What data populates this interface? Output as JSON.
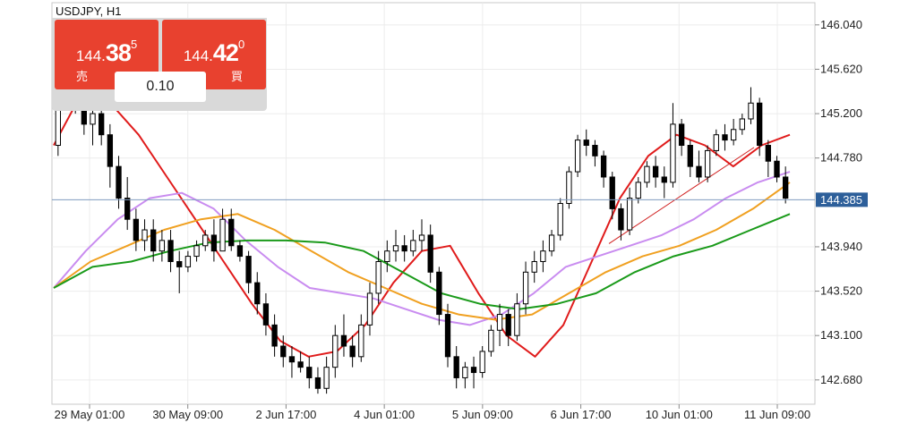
{
  "symbol_label": "USDJPY, H1",
  "trade_panel": {
    "sell": {
      "price_small": "144.",
      "price_big": "38",
      "price_sup": "5",
      "label": "売"
    },
    "buy": {
      "price_small": "144.",
      "price_big": "42",
      "price_sup": "0",
      "label": "買"
    },
    "volume": "0.10"
  },
  "colors": {
    "candle": "#000000",
    "ma_red": "#e01b1b",
    "ma_violet": "#c98cf0",
    "ma_orange": "#f0a020",
    "ma_green": "#1a9a1a",
    "trendline": "#d02020",
    "price_line": "#7f9cc0",
    "current_price_bg": "#2d5f9a"
  },
  "current_price": "144.385",
  "chart_data": {
    "type": "candlestick",
    "title": "USDJPY, H1",
    "y_axis": {
      "side": "right",
      "ticks": [
        "146.040",
        "145.620",
        "145.200",
        "144.780",
        "144.385",
        "143.940",
        "143.520",
        "143.100",
        "142.680"
      ],
      "ylim": [
        142.45,
        146.25
      ]
    },
    "x_axis": {
      "tick_labels": [
        "29 May 01:00",
        "30 May 09:00",
        "2 Jun 17:00",
        "4 Jun 01:00",
        "5 Jun 09:00",
        "6 Jun 17:00",
        "10 Jun 01:00",
        "11 Jun 09:00"
      ]
    },
    "grid": true,
    "candles": [
      [
        144.9,
        145.5,
        144.8,
        145.4
      ],
      [
        145.4,
        145.8,
        145.3,
        145.6
      ],
      [
        145.6,
        145.9,
        145.2,
        145.3
      ],
      [
        145.3,
        145.4,
        145.0,
        145.1
      ],
      [
        145.1,
        145.3,
        144.9,
        145.2
      ],
      [
        145.2,
        145.3,
        144.9,
        145.0
      ],
      [
        145.0,
        145.1,
        144.5,
        144.7
      ],
      [
        144.7,
        144.8,
        144.3,
        144.4
      ],
      [
        144.4,
        144.6,
        144.1,
        144.2
      ],
      [
        144.2,
        144.3,
        143.9,
        144.0
      ],
      [
        144.0,
        144.2,
        143.9,
        144.1
      ],
      [
        144.1,
        144.2,
        143.8,
        143.9
      ],
      [
        143.9,
        144.1,
        143.8,
        144.0
      ],
      [
        144.0,
        144.1,
        143.7,
        143.8
      ],
      [
        143.8,
        143.9,
        143.5,
        143.75
      ],
      [
        143.75,
        143.9,
        143.7,
        143.85
      ],
      [
        143.85,
        144.0,
        143.8,
        143.95
      ],
      [
        143.95,
        144.1,
        143.9,
        144.05
      ],
      [
        144.05,
        144.2,
        143.8,
        143.9
      ],
      [
        143.9,
        144.3,
        143.9,
        144.2
      ],
      [
        144.2,
        144.3,
        143.9,
        143.95
      ],
      [
        143.95,
        144.0,
        143.8,
        143.85
      ],
      [
        143.85,
        143.9,
        143.5,
        143.6
      ],
      [
        143.6,
        143.7,
        143.3,
        143.4
      ],
      [
        143.4,
        143.5,
        143.1,
        143.2
      ],
      [
        143.2,
        143.3,
        142.9,
        143.0
      ],
      [
        143.0,
        143.1,
        142.8,
        142.9
      ],
      [
        142.9,
        143.0,
        142.7,
        142.85
      ],
      [
        142.85,
        142.95,
        142.75,
        142.8
      ],
      [
        142.8,
        142.9,
        142.6,
        142.7
      ],
      [
        142.7,
        142.8,
        142.55,
        142.6
      ],
      [
        142.6,
        142.9,
        142.55,
        142.8
      ],
      [
        142.8,
        143.2,
        142.7,
        143.1
      ],
      [
        143.1,
        143.3,
        142.9,
        143.0
      ],
      [
        143.0,
        143.1,
        142.8,
        142.9
      ],
      [
        142.9,
        143.3,
        142.85,
        143.2
      ],
      [
        143.2,
        143.6,
        143.1,
        143.5
      ],
      [
        143.5,
        143.9,
        143.4,
        143.8
      ],
      [
        143.8,
        144.0,
        143.7,
        143.9
      ],
      [
        143.9,
        144.1,
        143.8,
        143.95
      ],
      [
        143.95,
        144.05,
        143.8,
        143.9
      ],
      [
        143.9,
        144.1,
        143.85,
        144.0
      ],
      [
        144.0,
        144.2,
        143.9,
        144.05
      ],
      [
        144.05,
        144.15,
        143.6,
        143.7
      ],
      [
        143.7,
        143.75,
        143.2,
        143.3
      ],
      [
        143.3,
        143.4,
        142.8,
        142.9
      ],
      [
        142.9,
        143.0,
        142.6,
        142.7
      ],
      [
        142.7,
        142.85,
        142.6,
        142.8
      ],
      [
        142.8,
        142.9,
        142.6,
        142.75
      ],
      [
        142.75,
        143.0,
        142.7,
        142.95
      ],
      [
        142.95,
        143.2,
        142.9,
        143.15
      ],
      [
        143.15,
        143.4,
        143.0,
        143.3
      ],
      [
        143.3,
        143.35,
        143.0,
        143.1
      ],
      [
        143.1,
        143.5,
        143.05,
        143.4
      ],
      [
        143.4,
        143.8,
        143.3,
        143.7
      ],
      [
        143.7,
        143.9,
        143.6,
        143.8
      ],
      [
        143.8,
        144.0,
        143.7,
        143.9
      ],
      [
        143.9,
        144.1,
        143.85,
        144.05
      ],
      [
        144.05,
        144.4,
        144.0,
        144.35
      ],
      [
        144.35,
        144.7,
        144.3,
        144.65
      ],
      [
        144.65,
        145.0,
        144.6,
        144.95
      ],
      [
        144.95,
        145.05,
        144.8,
        144.9
      ],
      [
        144.9,
        144.95,
        144.7,
        144.8
      ],
      [
        144.8,
        144.85,
        144.5,
        144.6
      ],
      [
        144.6,
        144.65,
        144.2,
        144.3
      ],
      [
        144.3,
        144.35,
        144.0,
        144.1
      ],
      [
        144.1,
        144.5,
        144.05,
        144.4
      ],
      [
        144.4,
        144.6,
        144.35,
        144.55
      ],
      [
        144.55,
        144.75,
        144.5,
        144.7
      ],
      [
        144.7,
        144.8,
        144.5,
        144.6
      ],
      [
        144.6,
        144.7,
        144.4,
        144.55
      ],
      [
        144.55,
        145.3,
        144.5,
        145.1
      ],
      [
        145.1,
        145.15,
        144.8,
        144.9
      ],
      [
        144.9,
        144.95,
        144.6,
        144.7
      ],
      [
        144.7,
        144.85,
        144.55,
        144.6
      ],
      [
        144.6,
        144.9,
        144.55,
        144.85
      ],
      [
        144.85,
        145.05,
        144.8,
        145.0
      ],
      [
        145.0,
        145.1,
        144.85,
        144.95
      ],
      [
        144.95,
        145.15,
        144.9,
        145.05
      ],
      [
        145.05,
        145.2,
        145.0,
        145.15
      ],
      [
        145.15,
        145.45,
        145.1,
        145.3
      ],
      [
        145.3,
        145.35,
        144.8,
        144.9
      ],
      [
        144.9,
        144.95,
        144.6,
        144.75
      ],
      [
        144.75,
        144.8,
        144.55,
        144.6
      ],
      [
        144.6,
        144.7,
        144.35,
        144.4
      ]
    ],
    "moving_averages": [
      {
        "color": "#e01b1b",
        "values": [
          144.9,
          145.4,
          145.3,
          145.0,
          144.6,
          144.2,
          143.8,
          143.4,
          143.05,
          142.9,
          142.95,
          143.2,
          143.6,
          143.9,
          143.95,
          143.5,
          143.1,
          142.9,
          143.2,
          143.8,
          144.4,
          144.8,
          145.0,
          144.9,
          144.7,
          144.9,
          145.0
        ]
      },
      {
        "color": "#c98cf0",
        "values": [
          143.55,
          143.9,
          144.2,
          144.4,
          144.45,
          144.3,
          144.0,
          143.75,
          143.55,
          143.5,
          143.45,
          143.35,
          143.25,
          143.2,
          143.3,
          143.5,
          143.75,
          143.85,
          143.95,
          144.05,
          144.2,
          144.4,
          144.55,
          144.65
        ]
      },
      {
        "color": "#f0a020",
        "values": [
          143.55,
          143.8,
          143.95,
          144.1,
          144.2,
          144.25,
          144.1,
          143.9,
          143.7,
          143.55,
          143.4,
          143.3,
          143.25,
          143.3,
          143.5,
          143.7,
          143.85,
          143.95,
          144.1,
          144.3,
          144.55
        ]
      },
      {
        "color": "#1a9a1a",
        "values": [
          143.55,
          143.75,
          143.8,
          143.9,
          143.98,
          144.0,
          144.0,
          143.98,
          143.9,
          143.7,
          143.5,
          143.4,
          143.35,
          143.4,
          143.5,
          143.7,
          143.85,
          143.95,
          144.1,
          144.25
        ]
      }
    ]
  }
}
